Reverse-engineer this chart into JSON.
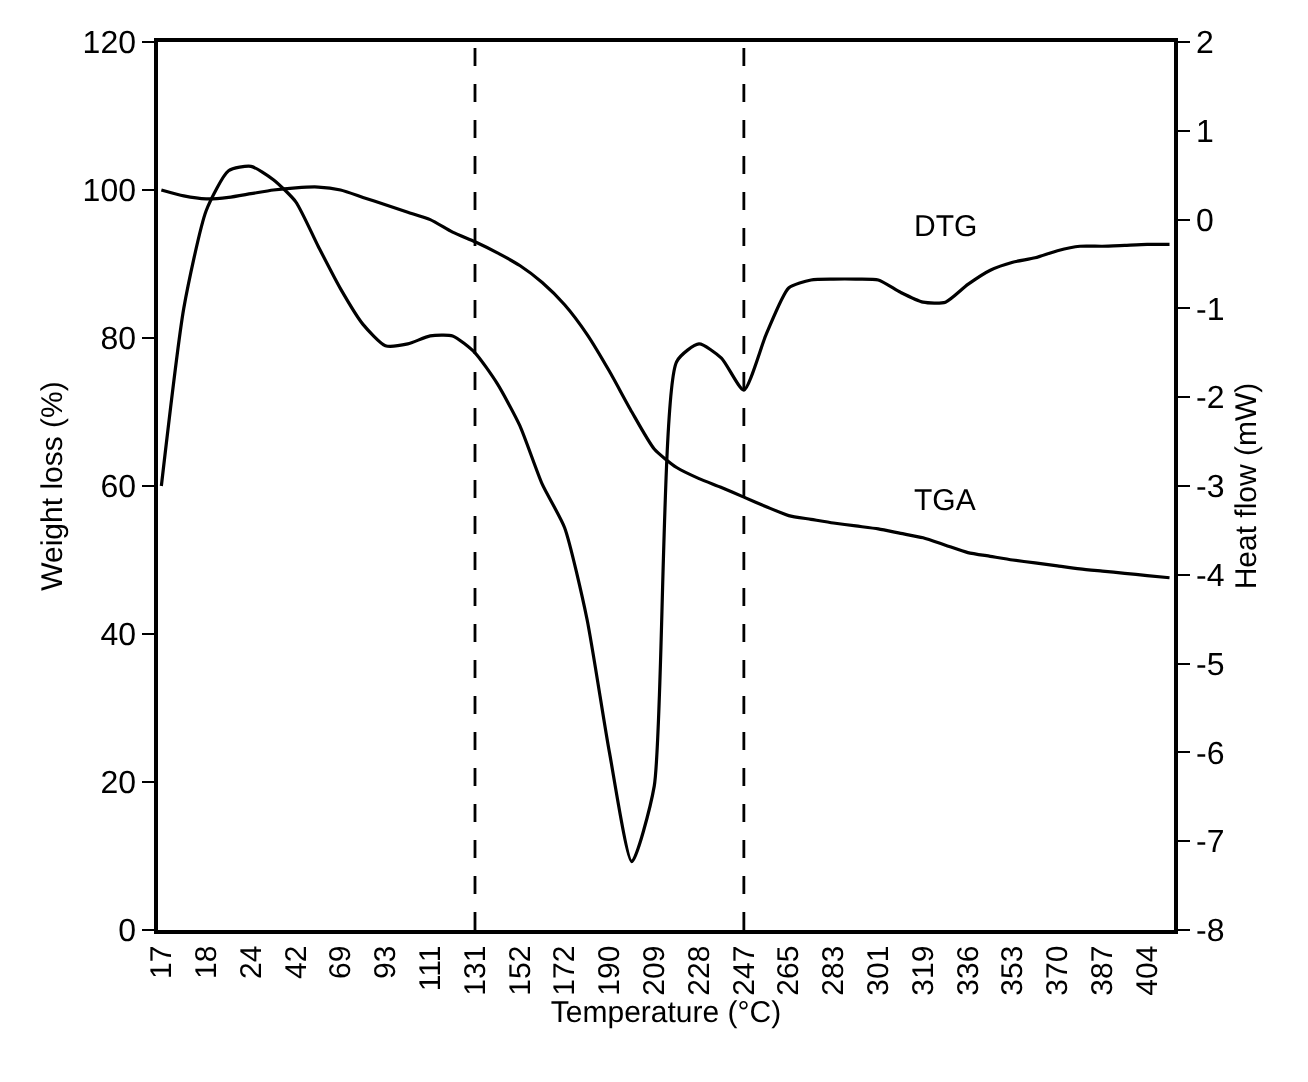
{
  "chart_data": {
    "type": "line",
    "xlabel": "Temperature (°C)",
    "ylabel": "Weight loss (%)",
    "y2label": "Heat flow (mW)",
    "categories": [
      "17",
      null,
      "18",
      null,
      "24",
      null,
      "42",
      null,
      "69",
      null,
      "93",
      null,
      "111",
      null,
      "131",
      null,
      "152",
      null,
      "172",
      null,
      "190",
      null,
      "209",
      null,
      "228",
      null,
      "247",
      null,
      "265",
      null,
      "283",
      null,
      "301",
      null,
      "319",
      null,
      "336",
      null,
      "353",
      null,
      "370",
      null,
      "387",
      null,
      "404",
      null
    ],
    "series": [
      {
        "name": "TGA",
        "color": "#000000",
        "values": [
          100,
          99.2,
          98.8,
          99,
          99.5,
          100,
          100.3,
          100.4,
          100,
          99,
          98,
          97,
          96,
          94.3,
          93,
          91.5,
          89.8,
          87.5,
          84.5,
          80.5,
          75.5,
          70,
          65,
          62.5,
          61,
          59.8,
          58.5,
          57.2,
          56,
          55.5,
          55,
          54.6,
          54.2,
          53.6,
          53,
          52,
          51,
          50.5,
          50,
          49.6,
          49.2,
          48.8,
          48.5,
          48.2,
          47.9,
          47.6
        ]
      },
      {
        "name": "DTG",
        "color": "#000000",
        "axis": "y2",
        "values": [
          -3,
          -1.0,
          0.1,
          0.55,
          0.6,
          0.45,
          0.2,
          -0.3,
          -0.78,
          -1.18,
          -1.42,
          -1.4,
          -1.31,
          -1.31,
          -1.5,
          -1.85,
          -2.32,
          -2.98,
          -3.47,
          -4.5,
          -6.0,
          -7.23,
          -6.38,
          -1.6,
          -1.4,
          -1.56,
          -1.92,
          -1.29,
          -0.77,
          -0.68,
          -0.67,
          -0.67,
          -0.68,
          -0.82,
          -0.93,
          -0.93,
          -0.73,
          -0.57,
          -0.48,
          -0.43,
          -0.35,
          -0.3,
          -0.3,
          -0.29,
          -0.28,
          -0.28
        ]
      }
    ],
    "ylim": [
      0,
      120
    ],
    "yticks": [
      0,
      20,
      40,
      60,
      80,
      100,
      120
    ],
    "y2lim": [
      -8,
      2
    ],
    "y2ticks": [
      -8,
      -7,
      -6,
      -5,
      -4,
      -3,
      -2,
      -1,
      0,
      1,
      2
    ],
    "ref_lines": [
      {
        "axis": "x",
        "value": "131",
        "color": "#000000",
        "line_style": "dashed"
      },
      {
        "axis": "x",
        "value": "247",
        "color": "#000000",
        "line_style": "dashed"
      }
    ],
    "grid": false,
    "legend": false,
    "marker": "none",
    "line_style": "solid"
  }
}
